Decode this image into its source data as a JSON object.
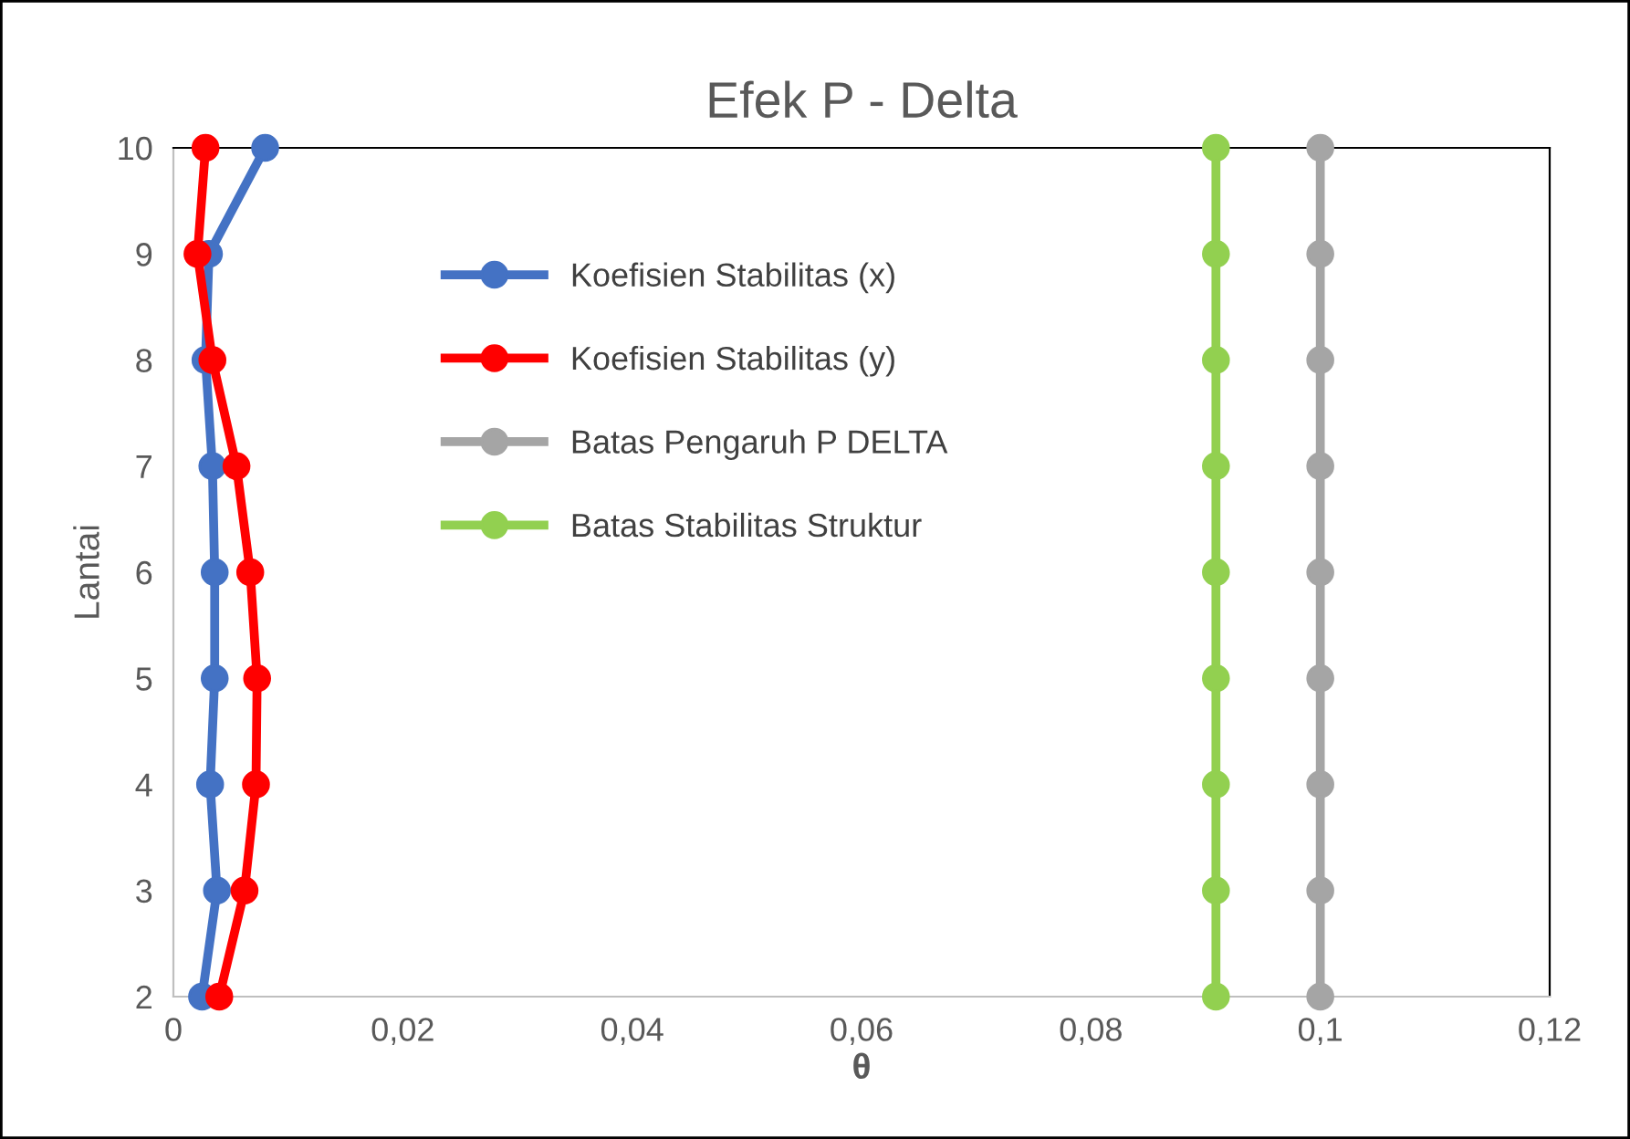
{
  "chart_data": {
    "type": "line",
    "title": "Efek P - Delta",
    "xlabel": "θ",
    "ylabel": "Lantai",
    "series": [
      {
        "name": "Koefisien Stabilitas (x)",
        "color": "#4472c4",
        "x": [
          0.0025,
          0.0038,
          0.0032,
          0.0036,
          0.0036,
          0.0034,
          0.0028,
          0.0031,
          0.008
        ],
        "values": [
          2,
          3,
          4,
          5,
          6,
          7,
          8,
          9,
          10
        ]
      },
      {
        "name": "Koefisien Stabilitas (y)",
        "color": "#ff0000",
        "x": [
          0.004,
          0.0062,
          0.0072,
          0.0073,
          0.0067,
          0.0055,
          0.0034,
          0.0021,
          0.0028
        ],
        "values": [
          2,
          3,
          4,
          5,
          6,
          7,
          8,
          9,
          10
        ]
      },
      {
        "name": "Batas Pengaruh P DELTA",
        "color": "#a5a5a5",
        "x": [
          0.1,
          0.1,
          0.1,
          0.1,
          0.1,
          0.1,
          0.1,
          0.1,
          0.1
        ],
        "values": [
          2,
          3,
          4,
          5,
          6,
          7,
          8,
          9,
          10
        ]
      },
      {
        "name": "Batas Stabilitas Struktur",
        "color": "#92d050",
        "x": [
          0.0909,
          0.0909,
          0.0909,
          0.0909,
          0.0909,
          0.0909,
          0.0909,
          0.0909,
          0.0909
        ],
        "values": [
          2,
          3,
          4,
          5,
          6,
          7,
          8,
          9,
          10
        ]
      }
    ],
    "xlim": [
      0,
      0.12
    ],
    "xticks": [
      0,
      {
        "value": 0.02,
        "label": "0,02"
      },
      {
        "value": 0.04,
        "label": "0,04"
      },
      {
        "value": 0.06,
        "label": "0,06"
      },
      {
        "value": 0.08,
        "label": "0,08"
      },
      {
        "value": 0.1,
        "label": "0,1"
      },
      {
        "value": 0.12,
        "label": "0,12"
      }
    ],
    "ylim": [
      2,
      10
    ],
    "yticks": [
      2,
      3,
      4,
      5,
      6,
      7,
      8,
      9,
      10
    ],
    "grid": false,
    "legend": "top",
    "marker": "circle",
    "line_style": "solid"
  }
}
